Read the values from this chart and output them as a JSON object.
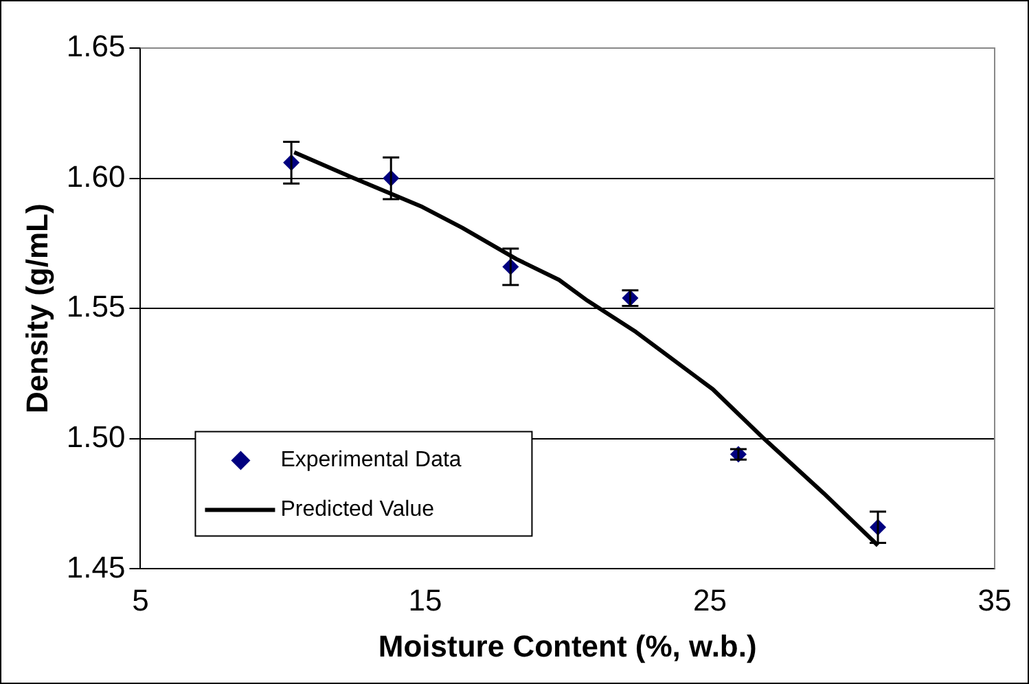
{
  "chart_data": {
    "type": "scatter",
    "xlabel": "Moisture Content (%, w.b.)",
    "ylabel": "Density (g/mL)",
    "xlim": [
      5,
      35
    ],
    "xticks": [
      5,
      15,
      25,
      35
    ],
    "ylim": [
      1.45,
      1.65
    ],
    "yticks": [
      1.45,
      {
        "value": 1.5,
        "label": "1.50"
      },
      1.55,
      {
        "value": 1.6,
        "label": "1.60"
      },
      1.65
    ],
    "grid": "y",
    "legend": "bottom left",
    "series": [
      {
        "name": "Experimental Data",
        "marker": "diamond",
        "color": "#000080",
        "x": [
          10.3,
          13.8,
          18.0,
          22.2,
          26.0,
          30.9
        ],
        "values": [
          1.606,
          1.6,
          1.566,
          1.554,
          1.494,
          1.466
        ],
        "errors": [
          0.008,
          0.008,
          0.007,
          0.003,
          0.002,
          0.006
        ]
      },
      {
        "name": "Predicted Value",
        "type": "line",
        "marker": "none",
        "line_style": "solid",
        "color": "#000000",
        "x": [
          10.4,
          12.5,
          14.9,
          16.3,
          18.2,
          19.7,
          20.7,
          22.4,
          25.1,
          26.9,
          29.0,
          30.9
        ],
        "values": [
          1.61,
          1.6,
          1.589,
          1.581,
          1.569,
          1.561,
          1.553,
          1.541,
          1.519,
          1.5,
          1.479,
          1.459
        ]
      }
    ]
  }
}
